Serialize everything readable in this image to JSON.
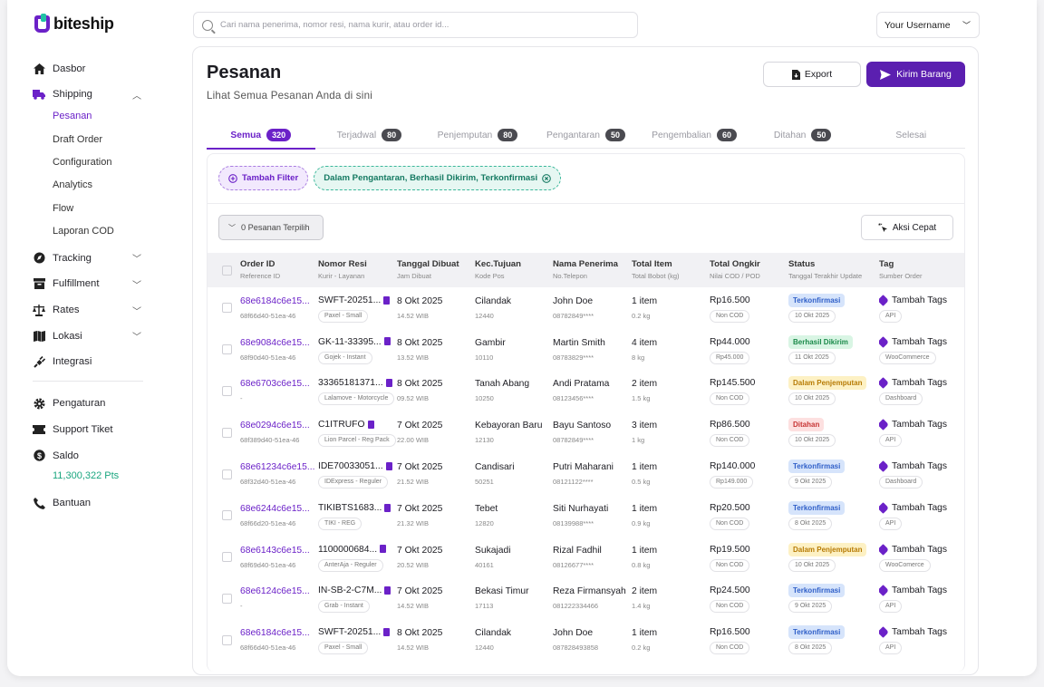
{
  "brand": {
    "name": "biteship"
  },
  "search": {
    "placeholder": "Cari nama penerima, nomor resi, nama kurir, atau order id..."
  },
  "user": {
    "name": "Your Username"
  },
  "sidebar": {
    "dasbor": "Dasbor",
    "shipping": "Shipping",
    "shipping_sub": [
      "Pesanan",
      "Draft Order",
      "Configuration",
      "Analytics",
      "Flow",
      "Laporan COD"
    ],
    "tracking": "Tracking",
    "fulfillment": "Fulfillment",
    "rates": "Rates",
    "lokasi": "Lokasi",
    "integrasi": "Integrasi",
    "pengaturan": "Pengaturan",
    "support": "Support Tiket",
    "saldo": "Saldo",
    "saldo_pts": "11,300,322 Pts",
    "bantuan": "Bantuan"
  },
  "page": {
    "title": "Pesanan",
    "subtitle": "Lihat Semua Pesanan Anda di sini",
    "export": "Export",
    "send": "Kirim Barang"
  },
  "tabs": [
    {
      "label": "Semua",
      "count": "320"
    },
    {
      "label": "Terjadwal",
      "count": "80"
    },
    {
      "label": "Penjemputan",
      "count": "80"
    },
    {
      "label": "Pengantaran",
      "count": "50"
    },
    {
      "label": "Pengembalian",
      "count": "60"
    },
    {
      "label": "Ditahan",
      "count": "50"
    },
    {
      "label": "Selesai",
      "count": ""
    }
  ],
  "filters": {
    "add": "Tambah Filter",
    "active": "Dalam Pengantaran, Berhasil Dikirim, Terkonfirmasi"
  },
  "selection": {
    "label": "0 Pesanan Terpilih",
    "quick": "Aksi Cepat"
  },
  "columns": [
    {
      "main": "Order ID",
      "sub": "Reference ID"
    },
    {
      "main": "Nomor Resi",
      "sub": "Kurir - Layanan"
    },
    {
      "main": "Tanggal Dibuat",
      "sub": "Jam Dibuat"
    },
    {
      "main": "Kec.Tujuan",
      "sub": "Kode Pos"
    },
    {
      "main": "Nama Penerima",
      "sub": "No.Telepon"
    },
    {
      "main": "Total Item",
      "sub": "Total Bobot (kg)"
    },
    {
      "main": "Total Ongkir",
      "sub": "Nilai COD / POD"
    },
    {
      "main": "Status",
      "sub": "Tanggal Terakhir Update"
    },
    {
      "main": "Tag",
      "sub": "Sumber Order"
    }
  ],
  "status_colors": {
    "Terkonfirmasi": {
      "bg": "#d6e4fb",
      "fg": "#2f5fc8"
    },
    "Berhasil Dikirim": {
      "bg": "#d9f5e4",
      "fg": "#1b8a4a"
    },
    "Dalam Penjemputan": {
      "bg": "#fdf1c4",
      "fg": "#b77b05"
    },
    "Ditahan": {
      "bg": "#fde0e0",
      "fg": "#c73434"
    }
  },
  "rows": [
    {
      "order_id": "68e6184c6e15...",
      "ref_id": "68f66d40-51ea-46",
      "resi": "SWFT-20251...",
      "courier": "Paxel - Small",
      "date": "8 Okt 2025",
      "time": "14.52 WIB",
      "kec": "Cilandak",
      "pos": "12440",
      "name": "John Doe",
      "phone": "08782849****",
      "items": "1 item",
      "weight": "0.2 kg",
      "ongkir": "Rp16.500",
      "cod": "Non COD",
      "status": "Terkonfirmasi",
      "updated": "10 Okt 2025",
      "tag": "Tambah Tags",
      "source": "API"
    },
    {
      "order_id": "68e9084c6e15...",
      "ref_id": "68f90d40-51ea-46",
      "resi": "GK-11-33395...",
      "courier": "Gojek - Instant",
      "date": "8 Okt 2025",
      "time": "13.52 WIB",
      "kec": "Gambir",
      "pos": "10110",
      "name": "Martin Smith",
      "phone": "08783829****",
      "items": "4 item",
      "weight": "8 kg",
      "ongkir": "Rp44.000",
      "cod": "Rp45.000",
      "status": "Berhasil Dikirim",
      "updated": "11 Okt 2025",
      "tag": "Tambah Tags",
      "source": "WooCommerce"
    },
    {
      "order_id": "68e6703c6e15...",
      "ref_id": "-",
      "resi": "33365181371...",
      "courier": "Lalamove - Motorcycle",
      "date": "8 Okt 2025",
      "time": "09.52 WIB",
      "kec": "Tanah Abang",
      "pos": "10250",
      "name": "Andi Pratama",
      "phone": "08123456****",
      "items": "2 item",
      "weight": "1.5 kg",
      "ongkir": "Rp145.500",
      "cod": "Non COD",
      "status": "Dalam Penjemputan",
      "updated": "10 Okt 2025",
      "tag": "Tambah Tags",
      "source": "Dashboard"
    },
    {
      "order_id": "68e0294c6e15...",
      "ref_id": "68f389d40-51ea-46",
      "resi": "C1ITRUFO",
      "courier": "Lion Parcel - Reg Pack",
      "date": "7 Okt 2025",
      "time": "22.00 WIB",
      "kec": "Kebayoran Baru",
      "pos": "12130",
      "name": "Bayu Santoso",
      "phone": "08782849****",
      "items": "3 item",
      "weight": "1 kg",
      "ongkir": "Rp86.500",
      "cod": "Non COD",
      "status": "Ditahan",
      "updated": "10 Okt 2025",
      "tag": "Tambah Tags",
      "source": "API"
    },
    {
      "order_id": "68e61234c6e15...",
      "ref_id": "68f32d40-51ea-46",
      "resi": "IDE70033051...",
      "courier": "IDExpress - Reguler",
      "date": "7 Okt 2025",
      "time": "21.52 WIB",
      "kec": "Candisari",
      "pos": "50251",
      "name": "Putri Maharani",
      "phone": "08121122****",
      "items": "1 item",
      "weight": "0.5 kg",
      "ongkir": "Rp140.000",
      "cod": "Rp149.000",
      "status": "Terkonfirmasi",
      "updated": "9 Okt 2025",
      "tag": "Tambah Tags",
      "source": "Dashboard"
    },
    {
      "order_id": "68e6244c6e15...",
      "ref_id": "68f66d20-51ea-46",
      "resi": "TIKIBTS1683...",
      "courier": "TIKI - REG",
      "date": "7 Okt 2025",
      "time": "21.32 WIB",
      "kec": "Tebet",
      "pos": "12820",
      "name": "Siti Nurhayati",
      "phone": "08139988****",
      "items": "1 item",
      "weight": "0.9 kg",
      "ongkir": "Rp20.500",
      "cod": "Non COD",
      "status": "Terkonfirmasi",
      "updated": "8 Okt 2025",
      "tag": "Tambah Tags",
      "source": "API"
    },
    {
      "order_id": "68e6143c6e15...",
      "ref_id": "68f69d40-51ea-46",
      "resi": "1100000684...",
      "courier": "AnterAja - Reguler",
      "date": "7 Okt 2025",
      "time": "20.52 WIB",
      "kec": "Sukajadi",
      "pos": "40161",
      "name": "Rizal Fadhil",
      "phone": "08126677****",
      "items": "1 item",
      "weight": "0.8 kg",
      "ongkir": "Rp19.500",
      "cod": "Non COD",
      "status": "Dalam Penjemputan",
      "updated": "10 Okt 2025",
      "tag": "Tambah Tags",
      "source": "WooComerce"
    },
    {
      "order_id": "68e6124c6e15...",
      "ref_id": "-",
      "resi": "IN-SB-2-C7M...",
      "courier": "Grab - Instant",
      "date": "7 Okt 2025",
      "time": "14.52 WIB",
      "kec": "Bekasi Timur",
      "pos": "17113",
      "name": "Reza Firmansyah",
      "phone": "081222334466",
      "items": "2 item",
      "weight": "1.4 kg",
      "ongkir": "Rp24.500",
      "cod": "Non COD",
      "status": "Terkonfirmasi",
      "updated": "9 Okt 2025",
      "tag": "Tambah Tags",
      "source": "API"
    },
    {
      "order_id": "68e6184c6e15...",
      "ref_id": "68f66d40-51ea-46",
      "resi": "SWFT-20251...",
      "courier": "Paxel - Small",
      "date": "8 Okt 2025",
      "time": "14.52 WIB",
      "kec": "Cilandak",
      "pos": "12440",
      "name": "John Doe",
      "phone": "087828493858",
      "items": "1 item",
      "weight": "0.2 kg",
      "ongkir": "Rp16.500",
      "cod": "Non COD",
      "status": "Terkonfirmasi",
      "updated": "8 Okt 2025",
      "tag": "Tambah Tags",
      "source": "API"
    }
  ]
}
